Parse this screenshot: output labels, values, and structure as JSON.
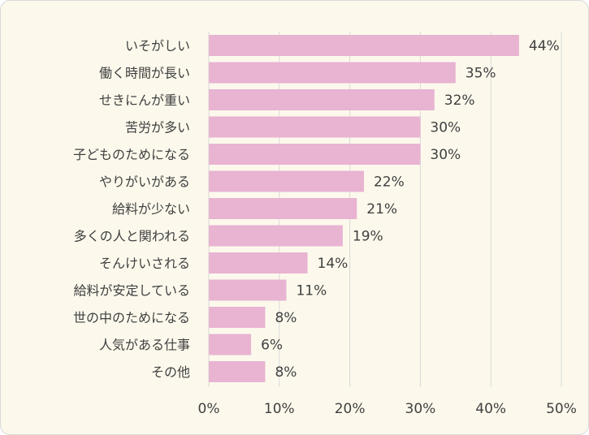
{
  "chart_data": {
    "type": "bar",
    "orientation": "horizontal",
    "categories": [
      "いそがしい",
      "働く時間が長い",
      "せきにんが重い",
      "苦労が多い",
      "子どものためになる",
      "やりがいがある",
      "給料が少ない",
      "多くの人と関われる",
      "そんけいされる",
      "給料が安定している",
      "世の中のためになる",
      "人気がある仕事",
      "その他"
    ],
    "values": [
      44,
      35,
      32,
      30,
      30,
      22,
      21,
      19,
      14,
      11,
      8,
      6,
      8
    ],
    "value_labels": [
      "44%",
      "35%",
      "32%",
      "30%",
      "30%",
      "22%",
      "21%",
      "19%",
      "14%",
      "11%",
      "8%",
      "6%",
      "8%"
    ],
    "xlim": [
      0,
      50
    ],
    "x_ticks": [
      0,
      10,
      20,
      30,
      40,
      50
    ],
    "x_tick_labels": [
      "0%",
      "10%",
      "20%",
      "30%",
      "40%",
      "50%"
    ],
    "grid": "vertical",
    "legend": "none",
    "title": "",
    "xlabel": "",
    "ylabel": ""
  },
  "colors": {
    "bar": "#e8b4d2",
    "background": "#fcf9ec",
    "grid": "#d9d9d9",
    "text": "#404040"
  }
}
